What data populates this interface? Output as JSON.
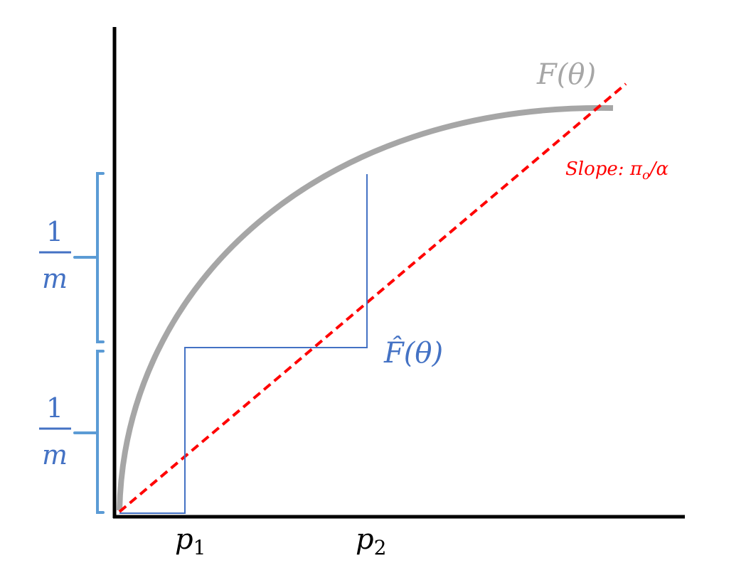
{
  "labels": {
    "F": "F(θ)",
    "F_hat": "F̂(θ)",
    "slope": "Slope: π",
    "slope_sub": "o",
    "slope_tail": "/α",
    "p1": "p",
    "p1_sub": "1",
    "p2": "p",
    "p2_sub": "2",
    "fraction_upper": {
      "numerator": "1",
      "denominator": "m"
    },
    "fraction_lower": {
      "numerator": "1",
      "denominator": "m"
    }
  },
  "colors": {
    "axes": "#000000",
    "curve": "#a6a6a6",
    "slope_line": "#ff0000",
    "step": "#4472c4",
    "bracket": "#5b9bd5"
  }
}
